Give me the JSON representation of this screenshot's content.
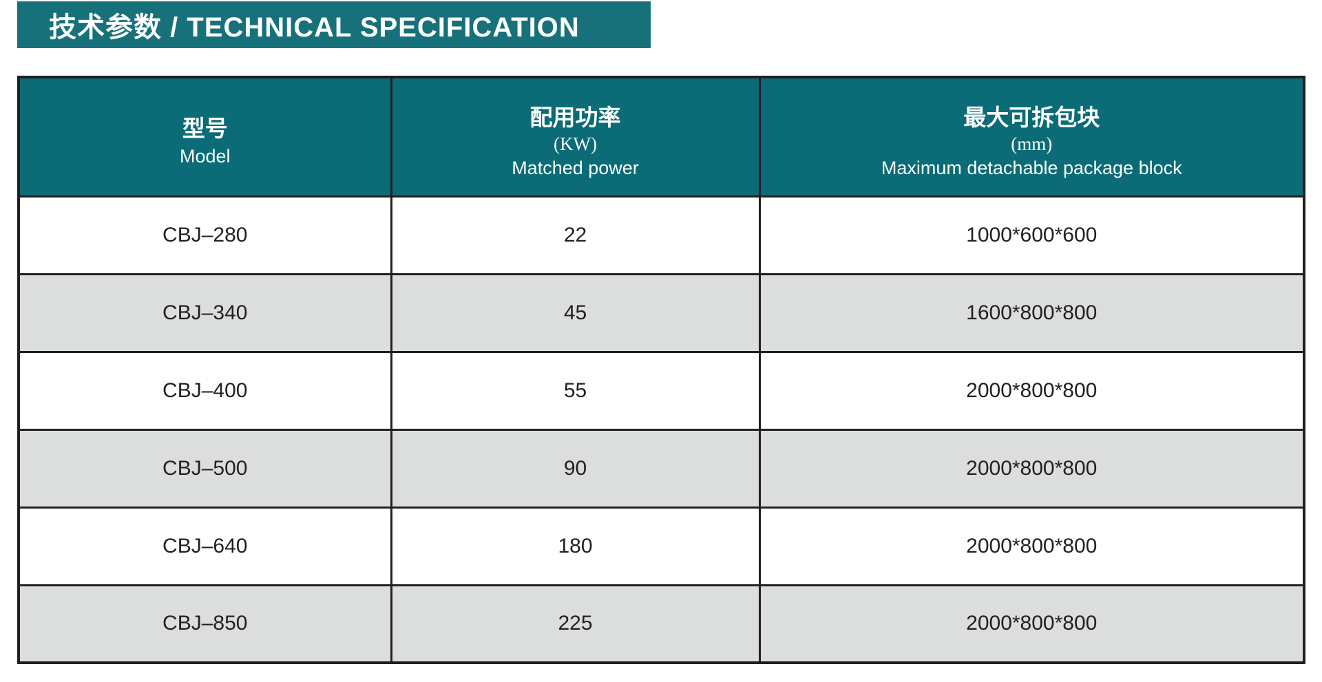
{
  "banner": {
    "title": "技术参数 / TECHNICAL SPECIFICATION"
  },
  "table": {
    "header": {
      "col1": {
        "zh": "型号",
        "en": "Model"
      },
      "col2": {
        "zh": "配用功率",
        "unit": "(KW)",
        "en": "Matched power"
      },
      "col3": {
        "zh": "最大可拆包块",
        "unit": "(mm)",
        "en": "Maximum detachable package block"
      }
    },
    "rows": [
      {
        "model": "CBJ–280",
        "power": "22",
        "block": "1000*600*600"
      },
      {
        "model": "CBJ–340",
        "power": "45",
        "block": "1600*800*800"
      },
      {
        "model": "CBJ–400",
        "power": "55",
        "block": "2000*800*800"
      },
      {
        "model": "CBJ–500",
        "power": "90",
        "block": "2000*800*800"
      },
      {
        "model": "CBJ–640",
        "power": "180",
        "block": "2000*800*800"
      },
      {
        "model": "CBJ–850",
        "power": "225",
        "block": "2000*800*800"
      }
    ]
  },
  "colors": {
    "banner_teal": "#17717b",
    "header_teal": "#0b6b76",
    "row_alt_gray": "#dcdddd",
    "border": "#231f20",
    "header_text": "#ffffff",
    "body_text": "#231f20"
  }
}
